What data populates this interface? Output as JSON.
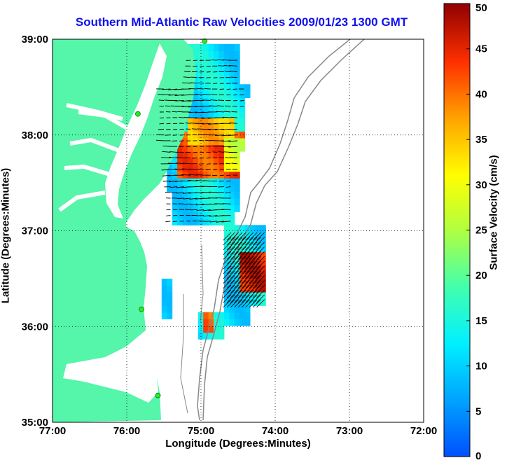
{
  "chart_data": {
    "type": "heatmap",
    "title": "Southern Mid-Atlantic Raw Velocities 2009/01/23 1300 GMT",
    "xlabel": "Longitude (Degrees:Minutes)",
    "ylabel": "Latitude (Degrees:Minutes)",
    "x_ticks": [
      "77:00",
      "76:00",
      "75:00",
      "74:00",
      "73:00",
      "72:00"
    ],
    "y_ticks": [
      "39:00",
      "38:00",
      "37:00",
      "36:00",
      "35:00"
    ],
    "xlim": [
      -77,
      -72
    ],
    "ylim": [
      35,
      39
    ],
    "grid": true,
    "colorbar": {
      "label": "Surface Velocity (cm/s)",
      "ticks": [
        0,
        5,
        10,
        15,
        20,
        25,
        30,
        35,
        40,
        45,
        50
      ],
      "range": [
        0,
        50
      ],
      "colormap": "jet"
    },
    "colors": {
      "title": "#1010ee",
      "land": "#55f5aa",
      "coast": "#ffffff",
      "contour": "#888888",
      "station": "#22ee22"
    },
    "regions": [
      {
        "lon_min": -75.35,
        "lon_max": -74.2,
        "lat_min": 37.55,
        "lat_max": 38.0,
        "speed": 42
      },
      {
        "lon_min": -75.25,
        "lon_max": -74.6,
        "lat_min": 37.85,
        "lat_max": 38.15,
        "speed": 36
      },
      {
        "lon_min": -74.7,
        "lon_max": -74.3,
        "lat_min": 37.6,
        "lat_max": 37.95,
        "speed": 28
      },
      {
        "lon_min": -74.55,
        "lon_max": -74.15,
        "lat_min": 36.35,
        "lat_max": 36.75,
        "speed": 45
      },
      {
        "lon_min": -75.0,
        "lon_max": -74.85,
        "lat_min": 35.9,
        "lat_max": 36.1,
        "speed": 40
      }
    ]
  }
}
